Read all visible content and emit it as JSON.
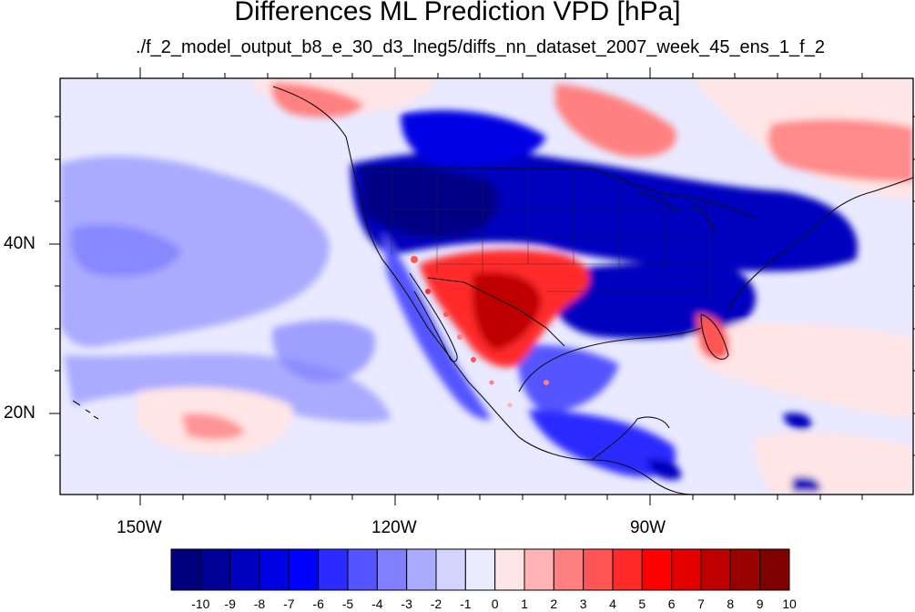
{
  "title": "Differences ML Prediction VPD [hPa]",
  "subtitle": "./f_2_model_output_b8_e_30_d3_lneg5/diffs_nn_dataset_2007_week_45_ens_1_f_2",
  "axes": {
    "lon_ticks": [
      {
        "label": "150W",
        "lon": -150
      },
      {
        "label": "120W",
        "lon": -120
      },
      {
        "label": "90W",
        "lon": -90
      }
    ],
    "lat_ticks": [
      {
        "label": "40N",
        "lat": 40
      },
      {
        "label": "20N",
        "lat": 20
      }
    ],
    "lon_range": [
      -159.5,
      -60
    ],
    "lat_range": [
      11,
      60
    ]
  },
  "colorbar": {
    "labels": [
      "-10",
      "-9",
      "-8",
      "-7",
      "-6",
      "-5",
      "-4",
      "-3",
      "-2",
      "-1",
      "0",
      "1",
      "2",
      "3",
      "4",
      "5",
      "6",
      "7",
      "8",
      "9",
      "10"
    ],
    "colors": [
      "#00007f",
      "#000099",
      "#0000bf",
      "#0000e5",
      "#0000ff",
      "#2b2bff",
      "#5555ff",
      "#7f7fff",
      "#aaaaff",
      "#d4d4ff",
      "#ebebff",
      "#ffe5e5",
      "#ffb3b3",
      "#ff8080",
      "#ff5555",
      "#ff2b2b",
      "#ff0000",
      "#e50000",
      "#bf0000",
      "#990000",
      "#7f0000"
    ]
  },
  "colors": {
    "ocean_base": "#e9e9ff",
    "light_pink": "#ffe4e4",
    "light_blue": "#aaaaff",
    "mid_blue": "#7f7fff",
    "dark_blue": "#0000bf",
    "deep_blue": "#00007f",
    "red": "#ff2b2b",
    "dark_red": "#bf0000"
  }
}
